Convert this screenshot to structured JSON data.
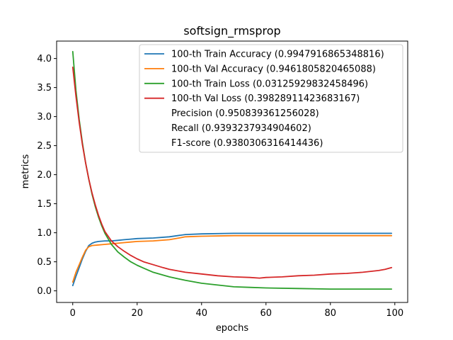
{
  "chart_data": {
    "type": "line",
    "title": "softsign_rmsprop",
    "xlabel": "epochs",
    "ylabel": "metrics",
    "xlim": [
      -5,
      104
    ],
    "ylim": [
      -0.2,
      4.3
    ],
    "xticks": [
      0,
      20,
      40,
      60,
      80,
      100
    ],
    "yticks": [
      0.0,
      0.5,
      1.0,
      1.5,
      2.0,
      2.5,
      3.0,
      3.5,
      4.0
    ],
    "xtick_labels": [
      "0",
      "20",
      "40",
      "60",
      "80",
      "100"
    ],
    "ytick_labels": [
      "0.0",
      "0.5",
      "1.0",
      "1.5",
      "2.0",
      "2.5",
      "3.0",
      "3.5",
      "4.0"
    ],
    "grid": false,
    "legend_position": "top-right",
    "colors": {
      "train_acc": "#1f77b4",
      "val_acc": "#ff7f0e",
      "train_loss": "#2ca02c",
      "val_loss": "#d62728"
    },
    "series": [
      {
        "name": "100-th Train Accuracy (0.9947916865348816)",
        "color": "#1f77b4",
        "x": [
          0,
          1,
          2,
          3,
          4,
          5,
          6,
          7,
          8,
          10,
          12,
          14,
          16,
          18,
          20,
          25,
          30,
          35,
          40,
          50,
          60,
          70,
          80,
          90,
          99
        ],
        "y": [
          0.09,
          0.25,
          0.4,
          0.55,
          0.68,
          0.78,
          0.82,
          0.84,
          0.85,
          0.86,
          0.86,
          0.87,
          0.88,
          0.89,
          0.9,
          0.91,
          0.93,
          0.97,
          0.98,
          0.99,
          0.99,
          0.99,
          0.99,
          0.99,
          0.99
        ]
      },
      {
        "name": "100-th Val Accuracy (0.9461805820465088)",
        "color": "#ff7f0e",
        "x": [
          0,
          1,
          2,
          3,
          4,
          5,
          6,
          8,
          10,
          12,
          14,
          16,
          18,
          20,
          25,
          30,
          33,
          35,
          40,
          50,
          60,
          70,
          80,
          90,
          99
        ],
        "y": [
          0.15,
          0.32,
          0.45,
          0.58,
          0.7,
          0.76,
          0.78,
          0.79,
          0.8,
          0.81,
          0.82,
          0.83,
          0.84,
          0.85,
          0.86,
          0.88,
          0.91,
          0.93,
          0.94,
          0.95,
          0.95,
          0.95,
          0.95,
          0.95,
          0.95
        ]
      },
      {
        "name": "100-th Train Loss (0.03125929832458496)",
        "color": "#2ca02c",
        "x": [
          0,
          1,
          2,
          3,
          4,
          5,
          6,
          7,
          8,
          9,
          10,
          12,
          14,
          16,
          18,
          20,
          22,
          25,
          30,
          35,
          40,
          45,
          50,
          55,
          60,
          70,
          80,
          90,
          99
        ],
        "y": [
          4.12,
          3.45,
          2.95,
          2.55,
          2.2,
          1.92,
          1.66,
          1.45,
          1.27,
          1.12,
          0.99,
          0.8,
          0.67,
          0.58,
          0.5,
          0.44,
          0.39,
          0.32,
          0.24,
          0.18,
          0.13,
          0.1,
          0.07,
          0.06,
          0.05,
          0.04,
          0.03,
          0.03,
          0.03
        ]
      },
      {
        "name": "100-th Val Loss (0.39828911423683167)",
        "color": "#d62728",
        "x": [
          0,
          1,
          2,
          3,
          4,
          5,
          6,
          7,
          8,
          9,
          10,
          12,
          14,
          16,
          18,
          20,
          22,
          25,
          28,
          30,
          35,
          40,
          45,
          50,
          55,
          58,
          60,
          65,
          70,
          75,
          80,
          85,
          90,
          95,
          97,
          99
        ],
        "y": [
          3.85,
          3.35,
          2.9,
          2.52,
          2.2,
          1.92,
          1.68,
          1.48,
          1.3,
          1.15,
          1.02,
          0.86,
          0.76,
          0.68,
          0.61,
          0.55,
          0.5,
          0.45,
          0.4,
          0.37,
          0.32,
          0.29,
          0.26,
          0.24,
          0.23,
          0.22,
          0.23,
          0.24,
          0.26,
          0.27,
          0.29,
          0.3,
          0.32,
          0.35,
          0.37,
          0.4
        ]
      }
    ],
    "legend_entries": [
      {
        "label": "100-th Train Accuracy (0.9947916865348816)",
        "color": "#1f77b4",
        "has_line": true
      },
      {
        "label": "100-th Val Accuracy (0.9461805820465088)",
        "color": "#ff7f0e",
        "has_line": true
      },
      {
        "label": "100-th Train Loss (0.03125929832458496)",
        "color": "#2ca02c",
        "has_line": true
      },
      {
        "label": "100-th Val Loss (0.39828911423683167)",
        "color": "#d62728",
        "has_line": true
      },
      {
        "label": "Precision (0.950839361256028)",
        "color": "",
        "has_line": false
      },
      {
        "label": "Recall (0.9393237934904602)",
        "color": "",
        "has_line": false
      },
      {
        "label": "F1-score (0.9380306316414436)",
        "color": "",
        "has_line": false
      }
    ]
  }
}
